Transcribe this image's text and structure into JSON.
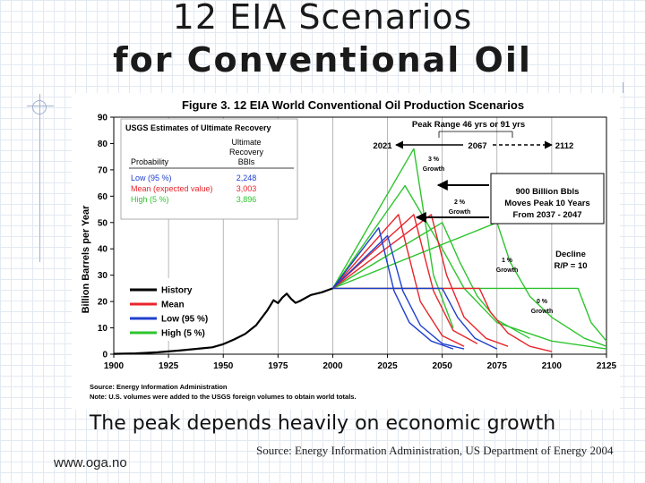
{
  "slide": {
    "title_line1": "12 EIA Scenarios",
    "title_line2": "for Conventional Oil",
    "caption": "The peak depends heavily on economic growth",
    "website": "www.oga.no",
    "source": "Source: Energy Information Administration, US Department of Energy 2004"
  },
  "chart_data": {
    "type": "line",
    "title": "Figure 3.  12 EIA World Conventional Oil Production Scenarios",
    "ylabel": "Billion Barrels per Year",
    "xlabel": "",
    "xlim": [
      1900,
      2125
    ],
    "ylim": [
      0,
      90
    ],
    "xticks": [
      1900,
      1925,
      1950,
      1975,
      2000,
      2025,
      2050,
      2075,
      2100,
      2125
    ],
    "yticks": [
      0,
      10,
      20,
      30,
      40,
      50,
      60,
      70,
      80,
      90
    ],
    "vgrid": [
      1925,
      1950,
      1975,
      2000,
      2025,
      2050,
      2075,
      2100
    ],
    "colors": {
      "history": "#000000",
      "mean": "#e8252b",
      "low": "#1f3fcc",
      "high": "#2ec42e"
    },
    "history": {
      "name": "History",
      "x": [
        1900,
        1910,
        1920,
        1930,
        1940,
        1945,
        1950,
        1955,
        1960,
        1965,
        1970,
        1973,
        1975,
        1977,
        1979,
        1981,
        1983,
        1985,
        1990,
        1995,
        2000
      ],
      "y": [
        0.15,
        0.3,
        0.7,
        1.4,
        2.2,
        2.6,
        3.8,
        5.6,
        7.7,
        11.0,
        16.5,
        20.5,
        19.4,
        21.5,
        23.0,
        21.0,
        19.5,
        20.2,
        22.5,
        23.5,
        25.0
      ]
    },
    "series": [
      {
        "name": "High (5 %)",
        "group": "high",
        "x": [
          2000,
          2037,
          2046,
          2055
        ],
        "y": [
          25,
          78,
          30,
          10
        ]
      },
      {
        "name": "High (5 %)",
        "group": "high",
        "x": [
          2000,
          2033,
          2050,
          2060,
          2075,
          2100,
          2125
        ],
        "y": [
          25,
          64,
          40,
          25,
          12,
          5,
          2
        ]
      },
      {
        "name": "High (5 %)",
        "group": "high",
        "x": [
          2000,
          2050,
          2058,
          2066,
          2075,
          2090
        ],
        "y": [
          25,
          50,
          35,
          22,
          13,
          6
        ]
      },
      {
        "name": "High (5 %)",
        "group": "high",
        "x": [
          2000,
          2075,
          2081,
          2090,
          2100,
          2115,
          2125
        ],
        "y": [
          25,
          50,
          35,
          22,
          14,
          6,
          3
        ]
      },
      {
        "name": "High (5 %)",
        "group": "high",
        "x": [
          2000,
          2112,
          2118,
          2125
        ],
        "y": [
          25,
          25,
          12,
          5
        ]
      },
      {
        "name": "Mean",
        "group": "mean",
        "x": [
          2000,
          2030,
          2040,
          2050,
          2060
        ],
        "y": [
          25,
          53,
          20,
          7,
          3
        ]
      },
      {
        "name": "Mean",
        "group": "mean",
        "x": [
          2000,
          2037,
          2046,
          2055,
          2066
        ],
        "y": [
          25,
          53,
          24,
          9,
          4
        ]
      },
      {
        "name": "Mean",
        "group": "mean",
        "x": [
          2000,
          2045,
          2052,
          2060,
          2070,
          2080
        ],
        "y": [
          25,
          53,
          30,
          14,
          6,
          3
        ]
      },
      {
        "name": "Mean",
        "group": "mean",
        "x": [
          2000,
          2067,
          2072,
          2080,
          2090,
          2100
        ],
        "y": [
          25,
          25,
          16,
          8,
          3,
          1
        ]
      },
      {
        "name": "Low (95 %)",
        "group": "low",
        "x": [
          2000,
          2021,
          2028,
          2035,
          2045,
          2055
        ],
        "y": [
          25,
          48,
          24,
          12,
          5,
          2
        ]
      },
      {
        "name": "Low (95 %)",
        "group": "low",
        "x": [
          2000,
          2025,
          2032,
          2040,
          2050,
          2060
        ],
        "y": [
          25,
          45,
          24,
          11,
          4,
          2
        ]
      },
      {
        "name": "Low (95 %)",
        "group": "low",
        "x": [
          2000,
          2050,
          2057,
          2065,
          2075
        ],
        "y": [
          25,
          25,
          14,
          6,
          2
        ]
      }
    ],
    "legend": [
      {
        "label": "History",
        "group": "history"
      },
      {
        "label": "Mean",
        "group": "mean"
      },
      {
        "label": "Low (95 %)",
        "group": "low"
      },
      {
        "label": "High (5 %)",
        "group": "high"
      }
    ],
    "usgs_table": {
      "title": "USGS Estimates of Ultimate Recovery",
      "col_header_1": "Ultimate",
      "col_header_2": "Recovery",
      "col_header_3": "BBls",
      "prob_header": "Probability",
      "rows": [
        {
          "label": "Low (95 %)",
          "value": "2,248",
          "color": "#1f3fcc"
        },
        {
          "label": "Mean (expected value)",
          "value": "3,003",
          "color": "#e8252b"
        },
        {
          "label": "High (5 %)",
          "value": "3,896",
          "color": "#2ec42e"
        }
      ]
    },
    "annotations": {
      "peak_range": "Peak Range 46 yrs or 91 yrs",
      "year_2021": "2021",
      "year_2067": "2067",
      "year_2112": "2112",
      "growth_3_a": "3 %",
      "growth_3_b": "Growth",
      "growth_2_a": "2 %",
      "growth_2_b": "Growth",
      "growth_1_a": "1 %",
      "growth_1_b": "Growth",
      "growth_0_a": "0 %",
      "growth_0_b": "Growth",
      "box_line1": "900 Billion Bbls",
      "box_line2": "Moves Peak 10 Years",
      "box_line3": "From 2037 - 2047",
      "decline_1": "Decline",
      "decline_2": "R/P = 10"
    },
    "notes": {
      "source": "Source:  Energy Information Administration",
      "note": "Note:  U.S. volumes were added to the USGS foreign volumes to obtain world totals."
    }
  }
}
